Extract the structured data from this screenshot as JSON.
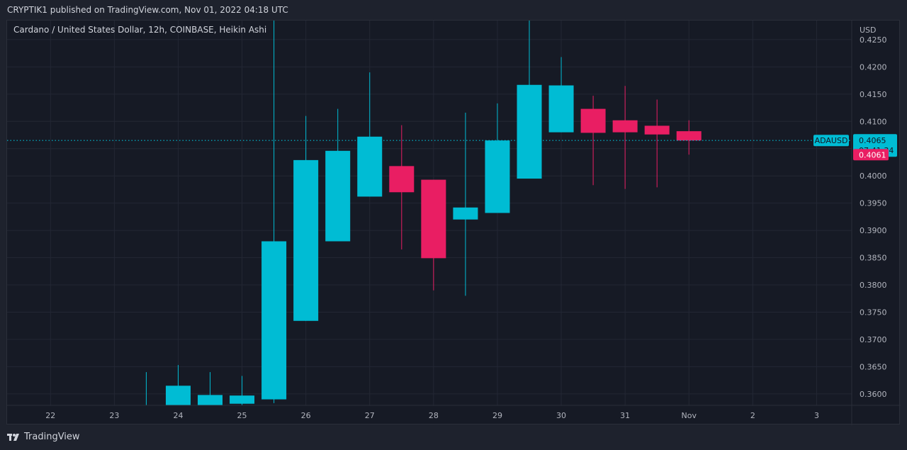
{
  "header": {
    "published_text": "CRYPTIK1 published on TradingView.com, Nov 01, 2022 04:18 UTC"
  },
  "footer": {
    "logo_text": "TradingView",
    "logo_icon": "tradingview-logo-icon"
  },
  "colors": {
    "background": "#1e222d",
    "pane": "#161a25",
    "grid": "#232734",
    "text": "#d1d4dc",
    "axis_text": "#b2b5be",
    "up": "#00bcd4",
    "down": "#e91e63"
  },
  "chart_data": {
    "type": "candlestick",
    "title": "Cardano / United States Dollar, 12h, COINBASE, Heikin Ashi",
    "currency_label": "USD",
    "symbol": "ADAUSD",
    "y_ticks": [
      "0.4250",
      "0.4200",
      "0.4150",
      "0.4100",
      "0.4050",
      "0.4000",
      "0.3950",
      "0.3900",
      "0.3850",
      "0.3800",
      "0.3750",
      "0.3700",
      "0.3650",
      "0.3600"
    ],
    "ylim": [
      0.3579,
      0.4285
    ],
    "x_ticks": [
      "22",
      "23",
      "24",
      "25",
      "26",
      "27",
      "28",
      "29",
      "30",
      "31",
      "Nov",
      "2",
      "3"
    ],
    "x_tick_positions": [
      22,
      23,
      24,
      25,
      26,
      27,
      28,
      29,
      30,
      31,
      32,
      33,
      34
    ],
    "xlim": [
      21.32,
      34.55
    ],
    "last_price": "0.4065",
    "last_price_value": 0.4065,
    "countdown": "07:41:34",
    "second_price_label": "0.4061",
    "second_price_value": 0.4061,
    "candles": [
      {
        "x": 23.5,
        "open": 0.357,
        "high": 0.364,
        "low": 0.356,
        "close": 0.3575
      },
      {
        "x": 24.0,
        "open": 0.3579,
        "high": 0.3653,
        "low": 0.3565,
        "close": 0.3615
      },
      {
        "x": 24.5,
        "open": 0.3579,
        "high": 0.364,
        "low": 0.357,
        "close": 0.3598
      },
      {
        "x": 25.0,
        "open": 0.3582,
        "high": 0.3633,
        "low": 0.3575,
        "close": 0.3597
      },
      {
        "x": 25.5,
        "open": 0.359,
        "high": 0.4297,
        "low": 0.3583,
        "close": 0.388
      },
      {
        "x": 26.0,
        "open": 0.3734,
        "high": 0.411,
        "low": 0.3734,
        "close": 0.4029
      },
      {
        "x": 26.5,
        "open": 0.388,
        "high": 0.4123,
        "low": 0.388,
        "close": 0.4046
      },
      {
        "x": 27.0,
        "open": 0.3962,
        "high": 0.419,
        "low": 0.3962,
        "close": 0.4072
      },
      {
        "x": 27.5,
        "open": 0.4018,
        "high": 0.4093,
        "low": 0.3865,
        "close": 0.397
      },
      {
        "x": 28.0,
        "open": 0.3993,
        "high": 0.3993,
        "low": 0.379,
        "close": 0.3849
      },
      {
        "x": 28.5,
        "open": 0.392,
        "high": 0.4116,
        "low": 0.378,
        "close": 0.3942
      },
      {
        "x": 29.0,
        "open": 0.3932,
        "high": 0.4133,
        "low": 0.3932,
        "close": 0.4065
      },
      {
        "x": 29.5,
        "open": 0.3995,
        "high": 0.431,
        "low": 0.3995,
        "close": 0.4167
      },
      {
        "x": 30.0,
        "open": 0.408,
        "high": 0.4218,
        "low": 0.408,
        "close": 0.4166
      },
      {
        "x": 30.5,
        "open": 0.4123,
        "high": 0.4147,
        "low": 0.3983,
        "close": 0.4079
      },
      {
        "x": 31.0,
        "open": 0.4102,
        "high": 0.4165,
        "low": 0.3976,
        "close": 0.408
      },
      {
        "x": 31.5,
        "open": 0.4092,
        "high": 0.414,
        "low": 0.3979,
        "close": 0.4076
      },
      {
        "x": 32.0,
        "open": 0.4082,
        "high": 0.4102,
        "low": 0.4039,
        "close": 0.4065
      }
    ]
  }
}
